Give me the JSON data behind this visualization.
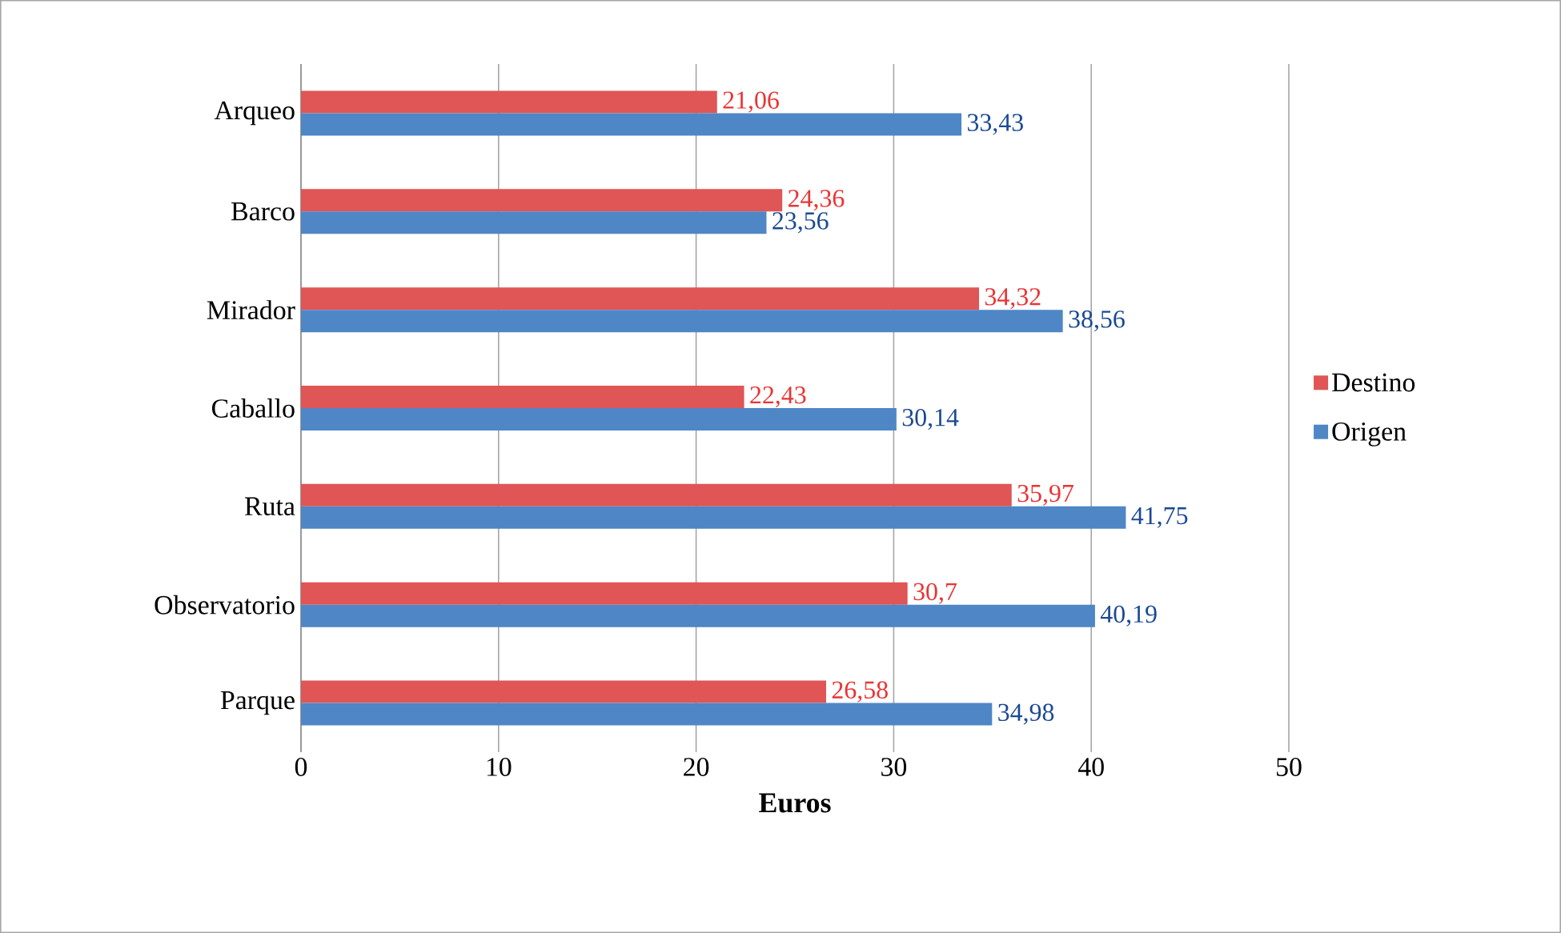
{
  "chart_data": {
    "type": "bar",
    "orientation": "horizontal",
    "xlabel": "Euros",
    "categories": [
      "Arqueo",
      "Barco",
      "Mirador",
      "Caballo",
      "Ruta",
      "Observatorio",
      "Parque"
    ],
    "series": [
      {
        "name": "Destino",
        "color": "#e05555",
        "values": [
          21.06,
          24.36,
          34.32,
          22.43,
          35.97,
          30.7,
          26.58
        ],
        "value_labels": [
          "21,06",
          "24,36",
          "34,32",
          "22,43",
          "35,97",
          "30,7",
          "26,58"
        ]
      },
      {
        "name": "Origen",
        "color": "#4f86c6",
        "values": [
          33.43,
          23.56,
          38.56,
          30.14,
          41.75,
          40.19,
          34.98
        ],
        "value_labels": [
          "33,43",
          "23,56",
          "38,56",
          "30,14",
          "41,75",
          "40,19",
          "34,98"
        ]
      }
    ],
    "xlim": [
      0,
      50
    ],
    "xticks": [
      0,
      10,
      20,
      30,
      40,
      50
    ],
    "grid": "x",
    "legend": "right"
  }
}
